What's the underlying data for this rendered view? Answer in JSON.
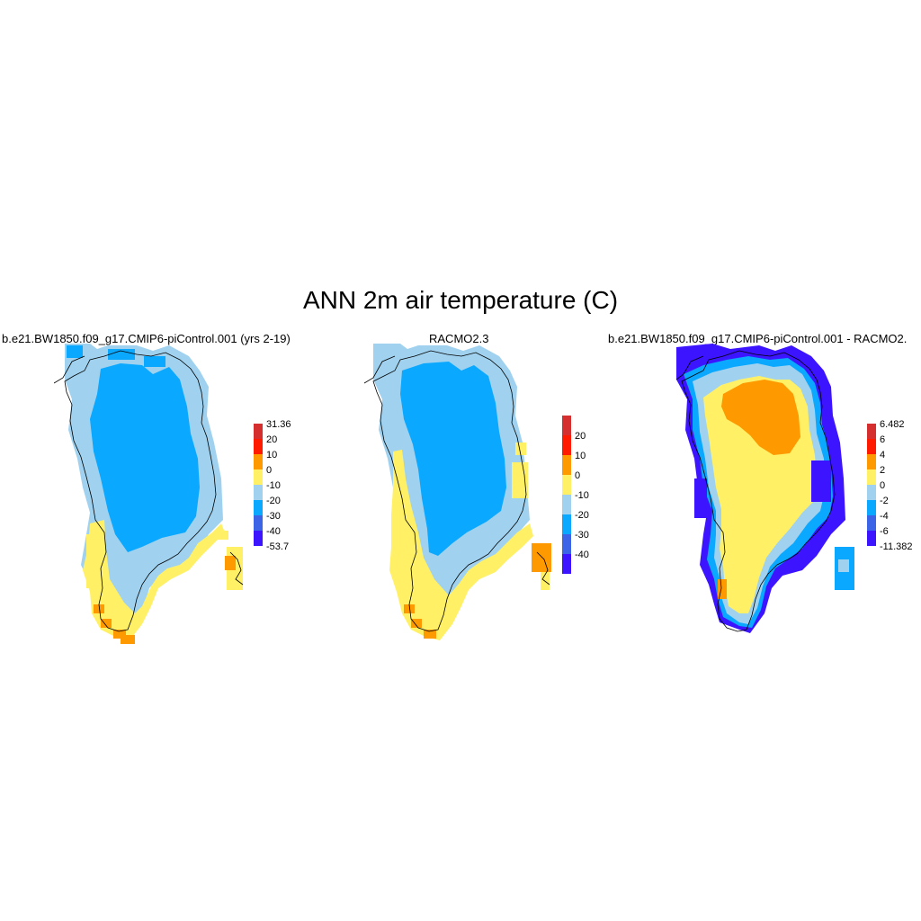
{
  "title": "ANN 2m air temperature (C)",
  "panels": [
    {
      "subtitle": "b.e21.BW1850.f09_g17.CMIP6-piControl.001 (yrs 2-19)",
      "colorbar": {
        "labels": [
          "31.36",
          "20",
          "10",
          "0",
          "-10",
          "-20",
          "-30",
          "-40",
          "-53.7"
        ],
        "colors": [
          "#d62f2f",
          "#ff1a00",
          "#ff9900",
          "#fff066",
          "#a0d2f0",
          "#0aa8ff",
          "#3c64e6",
          "#3c14ff"
        ]
      }
    },
    {
      "subtitle": "RACMO2.3",
      "colorbar": {
        "labels": [
          "20",
          "10",
          "0",
          "-10",
          "-20",
          "-30",
          "-40"
        ],
        "colors": [
          "#d62f2f",
          "#ff1a00",
          "#ff9900",
          "#fff066",
          "#a0d2f0",
          "#0aa8ff",
          "#3c64e6",
          "#3c14ff"
        ]
      }
    },
    {
      "subtitle": "b.e21.BW1850.f09_g17.CMIP6-piControl.001 - RACMO2.",
      "colorbar": {
        "labels": [
          "6.482",
          "6",
          "4",
          "2",
          "0",
          "-2",
          "-4",
          "-6",
          "-11.382"
        ],
        "colors": [
          "#d62f2f",
          "#ff1a00",
          "#ff9900",
          "#fff066",
          "#a0d2f0",
          "#0aa8ff",
          "#3c64e6",
          "#3c14ff"
        ]
      }
    }
  ]
}
